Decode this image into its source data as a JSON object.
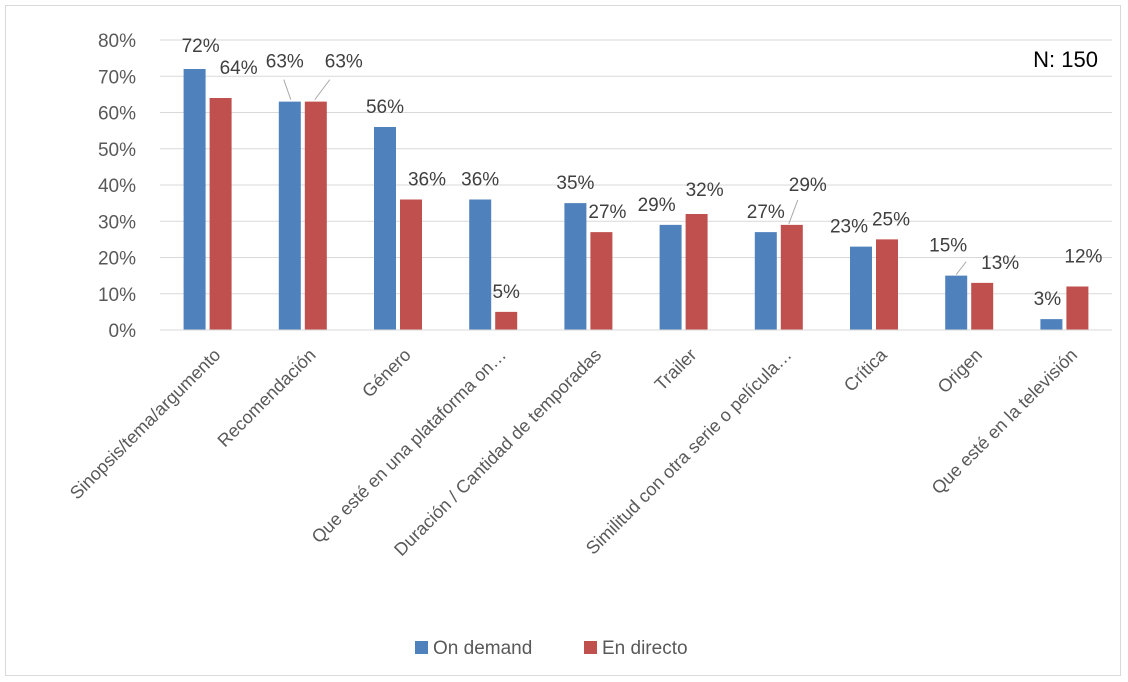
{
  "chart_data": {
    "type": "bar",
    "note": "N: 150",
    "categories": [
      "Sinopsis/tema/argumento",
      "Recomendación",
      "Género",
      "Que esté en una plataforma on…",
      "Duración / Cantidad de temporadas",
      "Trailer",
      "Similitud con otra serie o película…",
      "Crítica",
      "Origen",
      "Que esté en la televisión"
    ],
    "series": [
      {
        "name": "On demand",
        "color": "#4f81bd",
        "values": [
          72,
          63,
          56,
          36,
          35,
          29,
          27,
          23,
          15,
          3
        ]
      },
      {
        "name": "En directo",
        "color": "#c0504d",
        "values": [
          64,
          63,
          36,
          5,
          27,
          32,
          29,
          25,
          13,
          12
        ]
      }
    ],
    "value_suffix": "%",
    "ylim": [
      0,
      80
    ],
    "yticks": [
      "0%",
      "10%",
      "20%",
      "30%",
      "40%",
      "50%",
      "60%",
      "70%",
      "80%"
    ],
    "grid": true,
    "legend_position": "bottom"
  }
}
